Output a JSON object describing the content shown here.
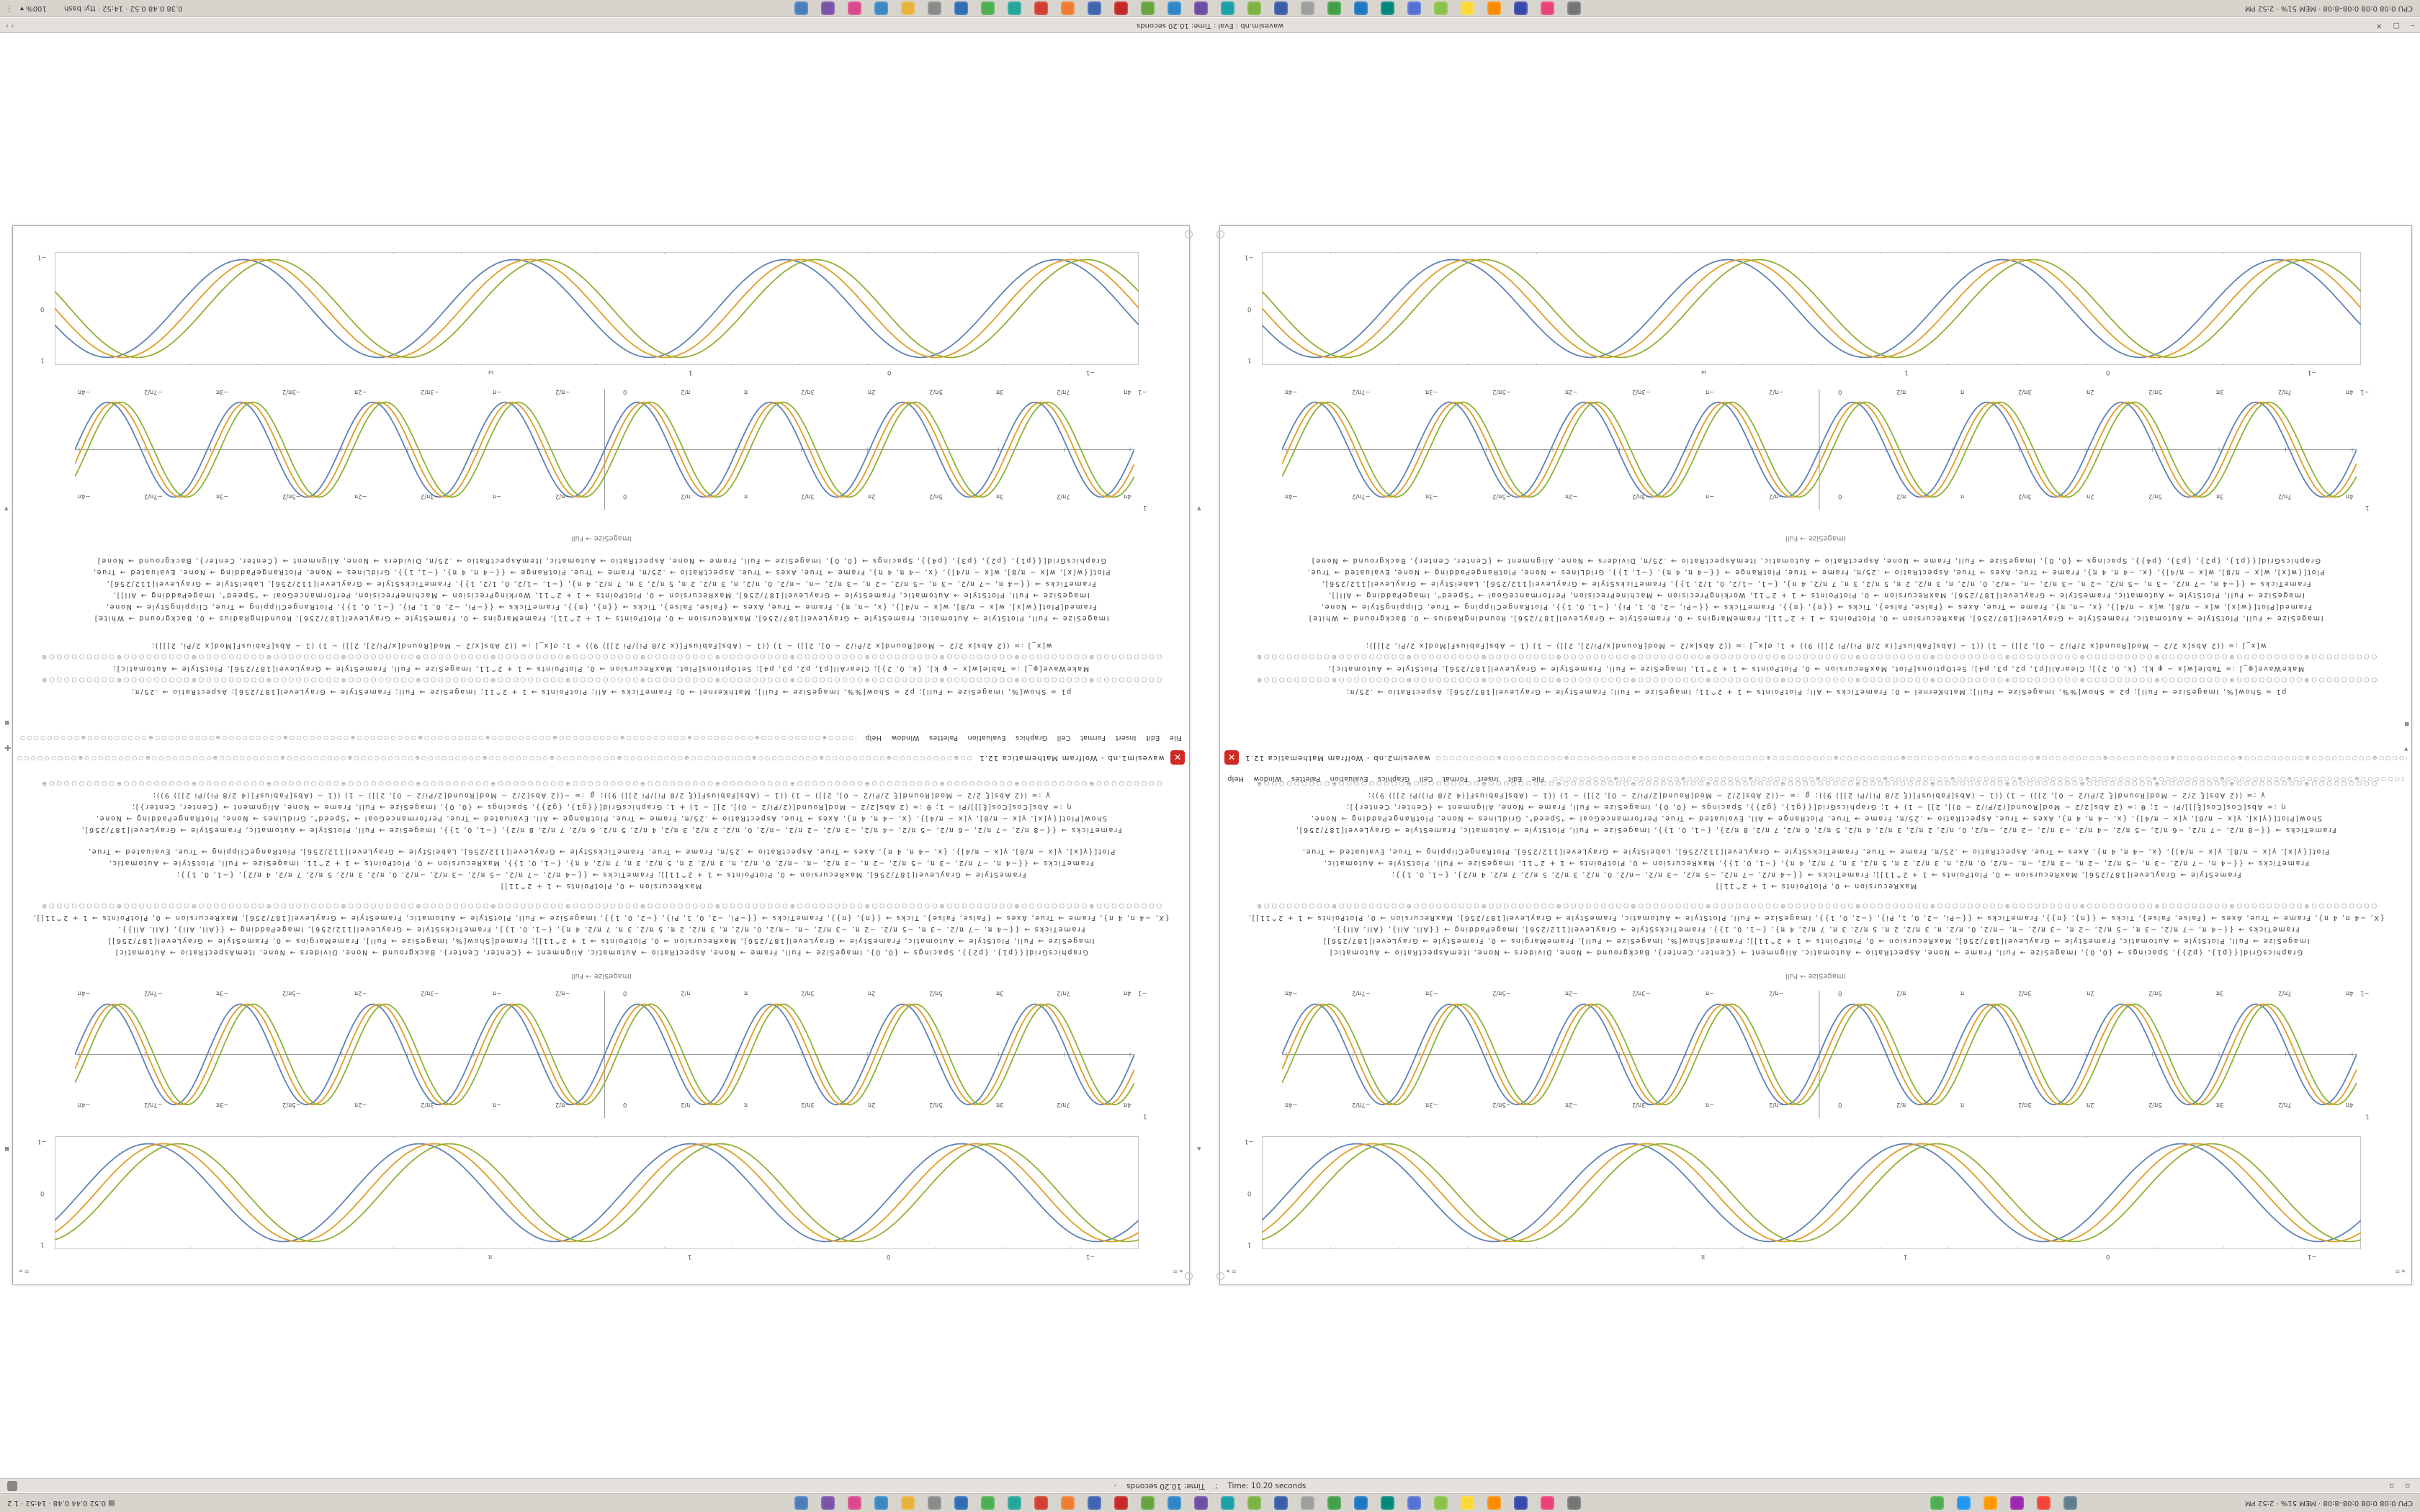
{
  "palette": [
    "#5e81b5",
    "#e19c24",
    "#8fb032"
  ],
  "bars": {
    "top_left_zoom": "100% ▾",
    "top_left_text": "0.38 0.48 0.52 · 14:52 · tty: bash",
    "top_right_text": "CPU 0:08 0:08 0:08–8:08 · MEM 51% · 2:52 PM",
    "chevrons": "‹ ›",
    "window_title": "wavesim.nb : Eval : Time: 10.20 seconds",
    "win_buttons": "– ▢ ✕",
    "bottom_left_text": "▤ 0.52 0.44 0.48 · 14:52 · 1 2",
    "bottom_right_text": "CPU 0:08 0:08 0:08–8:08 · MEM 51% · 2:52 PM"
  },
  "status": {
    "dot": "·",
    "time_flipped": "Time: 10.20 seconds",
    "sep": ";",
    "time": "Time: 10.20 seconds"
  },
  "windows": {
    "menu": "File Edit Insert Format Cell Graphics Evaluation Palettes Window Help",
    "icon_glyph": "✕",
    "strip_left": "≡ ▸",
    "strip_right": "◂ ≡",
    "left": {
      "title": "wavesim1.nb - Wolfram Mathematica 12.1"
    },
    "right": {
      "title": "wavesim2.nb - Wolfram Mathematica 12.1"
    }
  },
  "icons": {
    "dots": "⋮",
    "scroll_up": "▴",
    "scroll_down": "▾",
    "marker": "▪",
    "plus": "✚",
    "tray": "▣",
    "pager": "▫ ▫"
  },
  "apps": {
    "colors": [
      "#4a7ebb",
      "#7a52a8",
      "#d94a8c",
      "#3b88c3",
      "#e8b33a",
      "#8a8a8a",
      "#2f6db5",
      "#4caf50",
      "#26a69a",
      "#d23f31",
      "#ef7d31",
      "#3f64b0",
      "#c62828",
      "#66a53d",
      "#2f86c9",
      "#6d4ca3",
      "#19a0a8",
      "#7cb342",
      "#3a5da8",
      "#9e9e9e",
      "#43a047",
      "#1e77c2",
      "#00897b",
      "#5472d3",
      "#8bc34a",
      "#fdd835",
      "#fb8c00",
      "#3949ab",
      "#ec407a",
      "#757575"
    ],
    "right_colors": [
      "#4caf50",
      "#2196f3",
      "#ff9800",
      "#9c27b0",
      "#f44336",
      "#607d8b"
    ]
  },
  "notebook": {
    "label_full": "ImageSize → Full",
    "rings": "○○○○○○○○○⊕○○○○○○○○○⊕○○○○○○○○○⊕○○○○○○○○○⊕○○○○○○○○○⊕○○○○○○○○○⊕○○○○○○○○○⊕○○○○○○○○○⊕○○○○○○○○○⊕○○○○○○○○○⊕○○○○○○○○○⊕○○○○○○○○○⊕○○○○○○○○○⊕○○○○○○○○○⊕○○○○○○○○○⊕",
    "b1": [
      "GraphicsGrid[{{p1}, {p2}, {p3}, {p4}}, Spacings → {0, 0}, ImageSize → Full, Frame → None, AspectRatio → Automatic, ItemAspectRatio → .25/π, Dividers → None, Alignment → {Center, Center}, Background → None]",
      "Plot[{w[x], w[x − π/8], w[x − π/4]}, {x, −4 π, 4 π}, Frame → True, Axes → True, AspectRatio → .25/π, Frame → True, PlotRange → {{−4 π, 4 π}, {−1, 1}}, GridLines → None, PlotRangePadding → None, Evaluated → True,",
      "FrameTicks → {{−4 π, −7 π/2, −3 π, −5 π/2, −2 π, −3 π/2, −π, −π/2, 0, π/2, π, 3 π/2, 2 π, 5 π/2, 3 π, 7 π/2, 4 π}, {−1, −1/2, 0, 1/2, 1}}, FrameTicksStyle → GrayLevel[112/256], LabelStyle → GrayLevel[112/256],",
      "ImageSize → Full, PlotStyle → Automatic, FrameStyle → GrayLevel[187/256], MaxRecursion → 0, PlotPoints → 1 + 2^11, WorkingPrecision → MachinePrecision, PerformanceGoal → \"Speed\", ImagePadding → All]],",
      "Framed[Plot[{w[x], w[x − π/8], w[x − π/4]}, {x, −π, π}, Frame → True, Axes → {False, False}, Ticks → {{π}, {π}}, FrameTicks → {{−Pi, −2, 0, 1, Pi}, {−1, 0, 1}}, PlotRangeClipping → True, ClippingStyle → None,",
      "ImageSize → Full, PlotStyle → Automatic, FrameStyle → GrayLevel[187/256], MaxRecursion → 0, PlotPoints → 1 + 2^11], FrameMargins → 0, FrameStyle → GrayLevel[187/256], RoundingRadius → 0, Background → White]"
    ],
    "b2": [
      "w[x_] := ((2 Abs[x 2/2 − Mod[Round[x 2/Pi/2 − 0], 2]]) − 1) ((1 − (Abs[FabiusF[(x 2/8 Pi)/Pi 2]]) 9)) + 1;   σ[x_] := ((2 Abs[x/2 − Mod[Round[x/Pi/2], 2]]) − 1) (1 − Abs[FabiusF[Mod[x 2/Pi, 2]]]);",
      "MakeWave[φ_] := Table[w[x − φ k], {k, 0, 2}];   ClearAll[p1, p2, p3, p4];   SetOptions[Plot, MaxRecursion → 0, PlotPoints → 1 + 2^11, ImageSize → Full, FrameStyle → GrayLevel[187/256], PlotStyle → Automatic];",
      "p1 = Show[%, ImageSize → Full];   p2 = Show[%%, ImageSize → Full];   MathKernel → 0;   FrameTicks → All;   PlotPoints → 1 + 2^11;   ImageSize → Full;   FrameStyle → GrayLevel[187/256];   AspectRatio → .25/π;"
    ],
    "b3": [
      "γ := ((2 Abs[ξ 2/2 − Mod[Round[ξ 2/Pi/2 − 0], 2]]) − 1) ((1 − (Abs[FabiusF[(ξ 2/8 Pi)/Pi 2]]) 9));    ℊ := −((2 Abs[2/2 − Mod[Round[2/Pi/2 − 0], 2]]) − 1) ((1 − (Abs[FabiusF[(4 2/8 Pi)/Pi 2]]) 9));",
      "η := Abs[Cos[Cos[ξ]]]/Pi − 1;    θ := (2 Abs[2/2 − Mod[Round[(2/Pi/2 − 0)], 2]] − 1) + 1;    GraphicsGrid[{{g1}, {g2}}, Spacings → {0, 0}, ImageSize → Full, Frame → None, Alignment → {Center, Center}];",
      "Show[Plot[{γ[x], γ[x − π/8], γ[x − π/4]}, {x, −4 π, 4 π}, Axes → True, AspectRatio → .25/π, Frame → True, PlotRange → All, Evaluated → True, PerformanceGoal → \"Speed\", GridLines → None, PlotRangePadding → None,",
      "FrameTicks → {{−8 π/2, −7 π/2, −6 π/2, −5 π/2, −4 π/2, −3 π/2, −2 π/2, −π/2, 0, π/2, 2 π/2, 3 π/2, 4 π/2, 5 π/2, 6 π/2, 7 π/2, 8 π/2}, {−1, 0, 1}}, ImageSize → Full, PlotStyle → Automatic, FrameStyle → GrayLevel[187/256],"
    ],
    "b4": [
      "Plot[{γ[x], γ[x − π/8], γ[x − π/4]}, {x, −4 π, 4 π}, Axes → True, AspectRatio → .25/π, Frame → True, FrameTicksStyle → GrayLevel[112/256], LabelStyle → GrayLevel[112/256], PlotRangeClipping → True, Evaluated → True,",
      "FrameTicks → {{−4 π, −7 π/2, −3 π, −5 π/2, −2 π, −3 π/2, −π, −π/2, 0, π/2, π, 3 π/2, 2 π, 5 π/2, 3 π, 7 π/2, 4 π}, {−1, 0, 1}}, MaxRecursion → 0, PlotPoints → 1 + 2^11, ImageSize → Full, PlotStyle → Automatic,",
      "FrameStyle → GrayLevel[187/256], MaxRecursion → 0, PlotPoints → 1 + 2^11]];   FrameTicks → {{−4 π/2, −7 π/2, −5 π/2, −3 π/2, −π/2, 0, π/2, 3 π/2, 5 π/2, 7 π/2, 4 π/2}, {−1, 0, 1}};",
      "MaxRecursion → 0, PlotPoints → 1 + 2^11]]"
    ],
    "b5": [
      "{X, −4 π, 4 π}, Frame → True, Axes → {False, False}, Ticks → {{π}, {π}}, FrameTicks → {{−Pi, −2, 0, 1, Pi}, {−2, 0, 1}}, ImageSize → Full, PlotStyle → Automatic, FrameStyle → GrayLevel[187/256], MaxRecursion → 0, PlotPoints → 1 + 2^11]],",
      "FrameTicks → {{−4 π, −7 π/2, −3 π, −5 π/2, −2 π, −3 π/2, −π, −π/2, 0, π/2, π, 3 π/2, 2 π, 5 π/2, 3 π, 7 π/2, 4 π}, {−1, 0, 1}}, FrameTicksStyle → GrayLevel[112/256], ImagePadding → {{All, All}, {All, All}},",
      "ImageSize → Full, PlotStyle → Automatic, FrameStyle → GrayLevel[187/256], MaxRecursion → 0, PlotPoints → 1 + 2^11]];   Framed[Show[%, ImageSize → Full], FrameMargins → 0, FrameStyle → GrayLevel[187/256]]",
      "GraphicsGrid[{{p1}, {p2}}, Spacings → {0, 0}, ImageSize → Full, Frame → None, AspectRatio → Automatic, Alignment → {Center, Center}, Background → None, Dividers → None, ItemAspectRatio → Automatic]"
    ]
  },
  "plots": {
    "framed_top": {
      "kind": "framed",
      "x_from": 0,
      "x_to": 25.133,
      "freq": 1,
      "amp": 0.9,
      "phases": [
        -2.8,
        -3.15,
        -3.5
      ],
      "x_labels": [
        "ω",
        "1",
        "0",
        "−1"
      ],
      "y_labels": [
        "−1",
        "0",
        "1"
      ]
    },
    "framed_bot": {
      "kind": "framed",
      "x_from": 0,
      "x_to": 25.133,
      "freq": 1,
      "amp": 0.9,
      "phases": [
        -0.6,
        -0.95,
        -1.3
      ],
      "x_labels": [
        "π",
        "1",
        "0",
        "−1"
      ],
      "y_labels": [
        "−1",
        "0",
        "1"
      ]
    },
    "axis_top": {
      "kind": "axis",
      "x_from": -12.566,
      "x_to": 12.566,
      "freq": 2,
      "amp": 0.78,
      "phases": [
        0,
        -0.3,
        -0.6
      ],
      "tick_labels": [
        "−4π",
        "−7π/2",
        "−3π",
        "−5π/2",
        "−2π",
        "−3π/2",
        "−π",
        "−π/2",
        "0",
        "π/2",
        "π",
        "3π/2",
        "2π",
        "5π/2",
        "3π",
        "7π/2",
        "4π"
      ],
      "side_labels": [
        "−1",
        "1"
      ]
    },
    "axis_bot": {
      "kind": "axis",
      "x_from": -12.566,
      "x_to": 12.566,
      "freq": 2,
      "amp": 0.78,
      "phases": [
        0,
        -0.3,
        -0.6
      ],
      "tick_labels": [
        "−4π",
        "−7π/2",
        "−3π",
        "−5π/2",
        "−2π",
        "−3π/2",
        "−π",
        "−π/2",
        "0",
        "π/2",
        "π",
        "3π/2",
        "2π",
        "5π/2",
        "3π",
        "7π/2",
        "4π"
      ],
      "side_labels": [
        "−1",
        "1"
      ]
    }
  }
}
